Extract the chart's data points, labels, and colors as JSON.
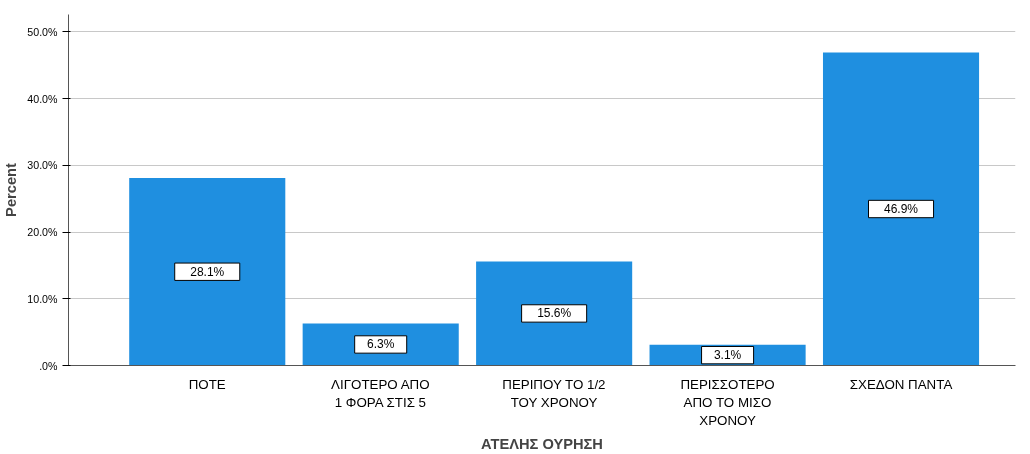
{
  "chart_data": {
    "type": "bar",
    "xlabel": "ΑΤΕΛΗΣ ΟΥΡΗΣΗ",
    "ylabel": "Percent",
    "categories": [
      "ΠΟΤΕ",
      "ΛΙΓΟΤΕΡΟ ΑΠΟ\n1 ΦΟΡΑ ΣΤΙΣ 5",
      "ΠΕΡΙΠΟΥ ΤΟ 1/2\nΤΟΥ ΧΡΟΝΟΥ",
      "ΠΕΡΙΣΣΟΤΕΡΟ\nΑΠΟ ΤΟ ΜΙΣΟ\nΧΡΟΝΟΥ",
      "ΣΧΕΔΟΝ ΠΑΝΤΑ"
    ],
    "values": [
      28.1,
      6.3,
      15.6,
      3.1,
      46.9
    ],
    "value_labels": [
      "28.1%",
      "6.3%",
      "15.6%",
      "3.1%",
      "46.9%"
    ],
    "color": "#1f8fe0",
    "ylim": [
      0,
      52.6
    ],
    "yticks": [
      {
        "value": 0,
        "label": ".0%"
      },
      {
        "value": 10,
        "label": "10.0%"
      },
      {
        "value": 20,
        "label": "20.0%"
      },
      {
        "value": 30,
        "label": "30.0%"
      },
      {
        "value": 40,
        "label": "40.0%"
      },
      {
        "value": 50,
        "label": "50.0%"
      }
    ],
    "grid": "y"
  }
}
